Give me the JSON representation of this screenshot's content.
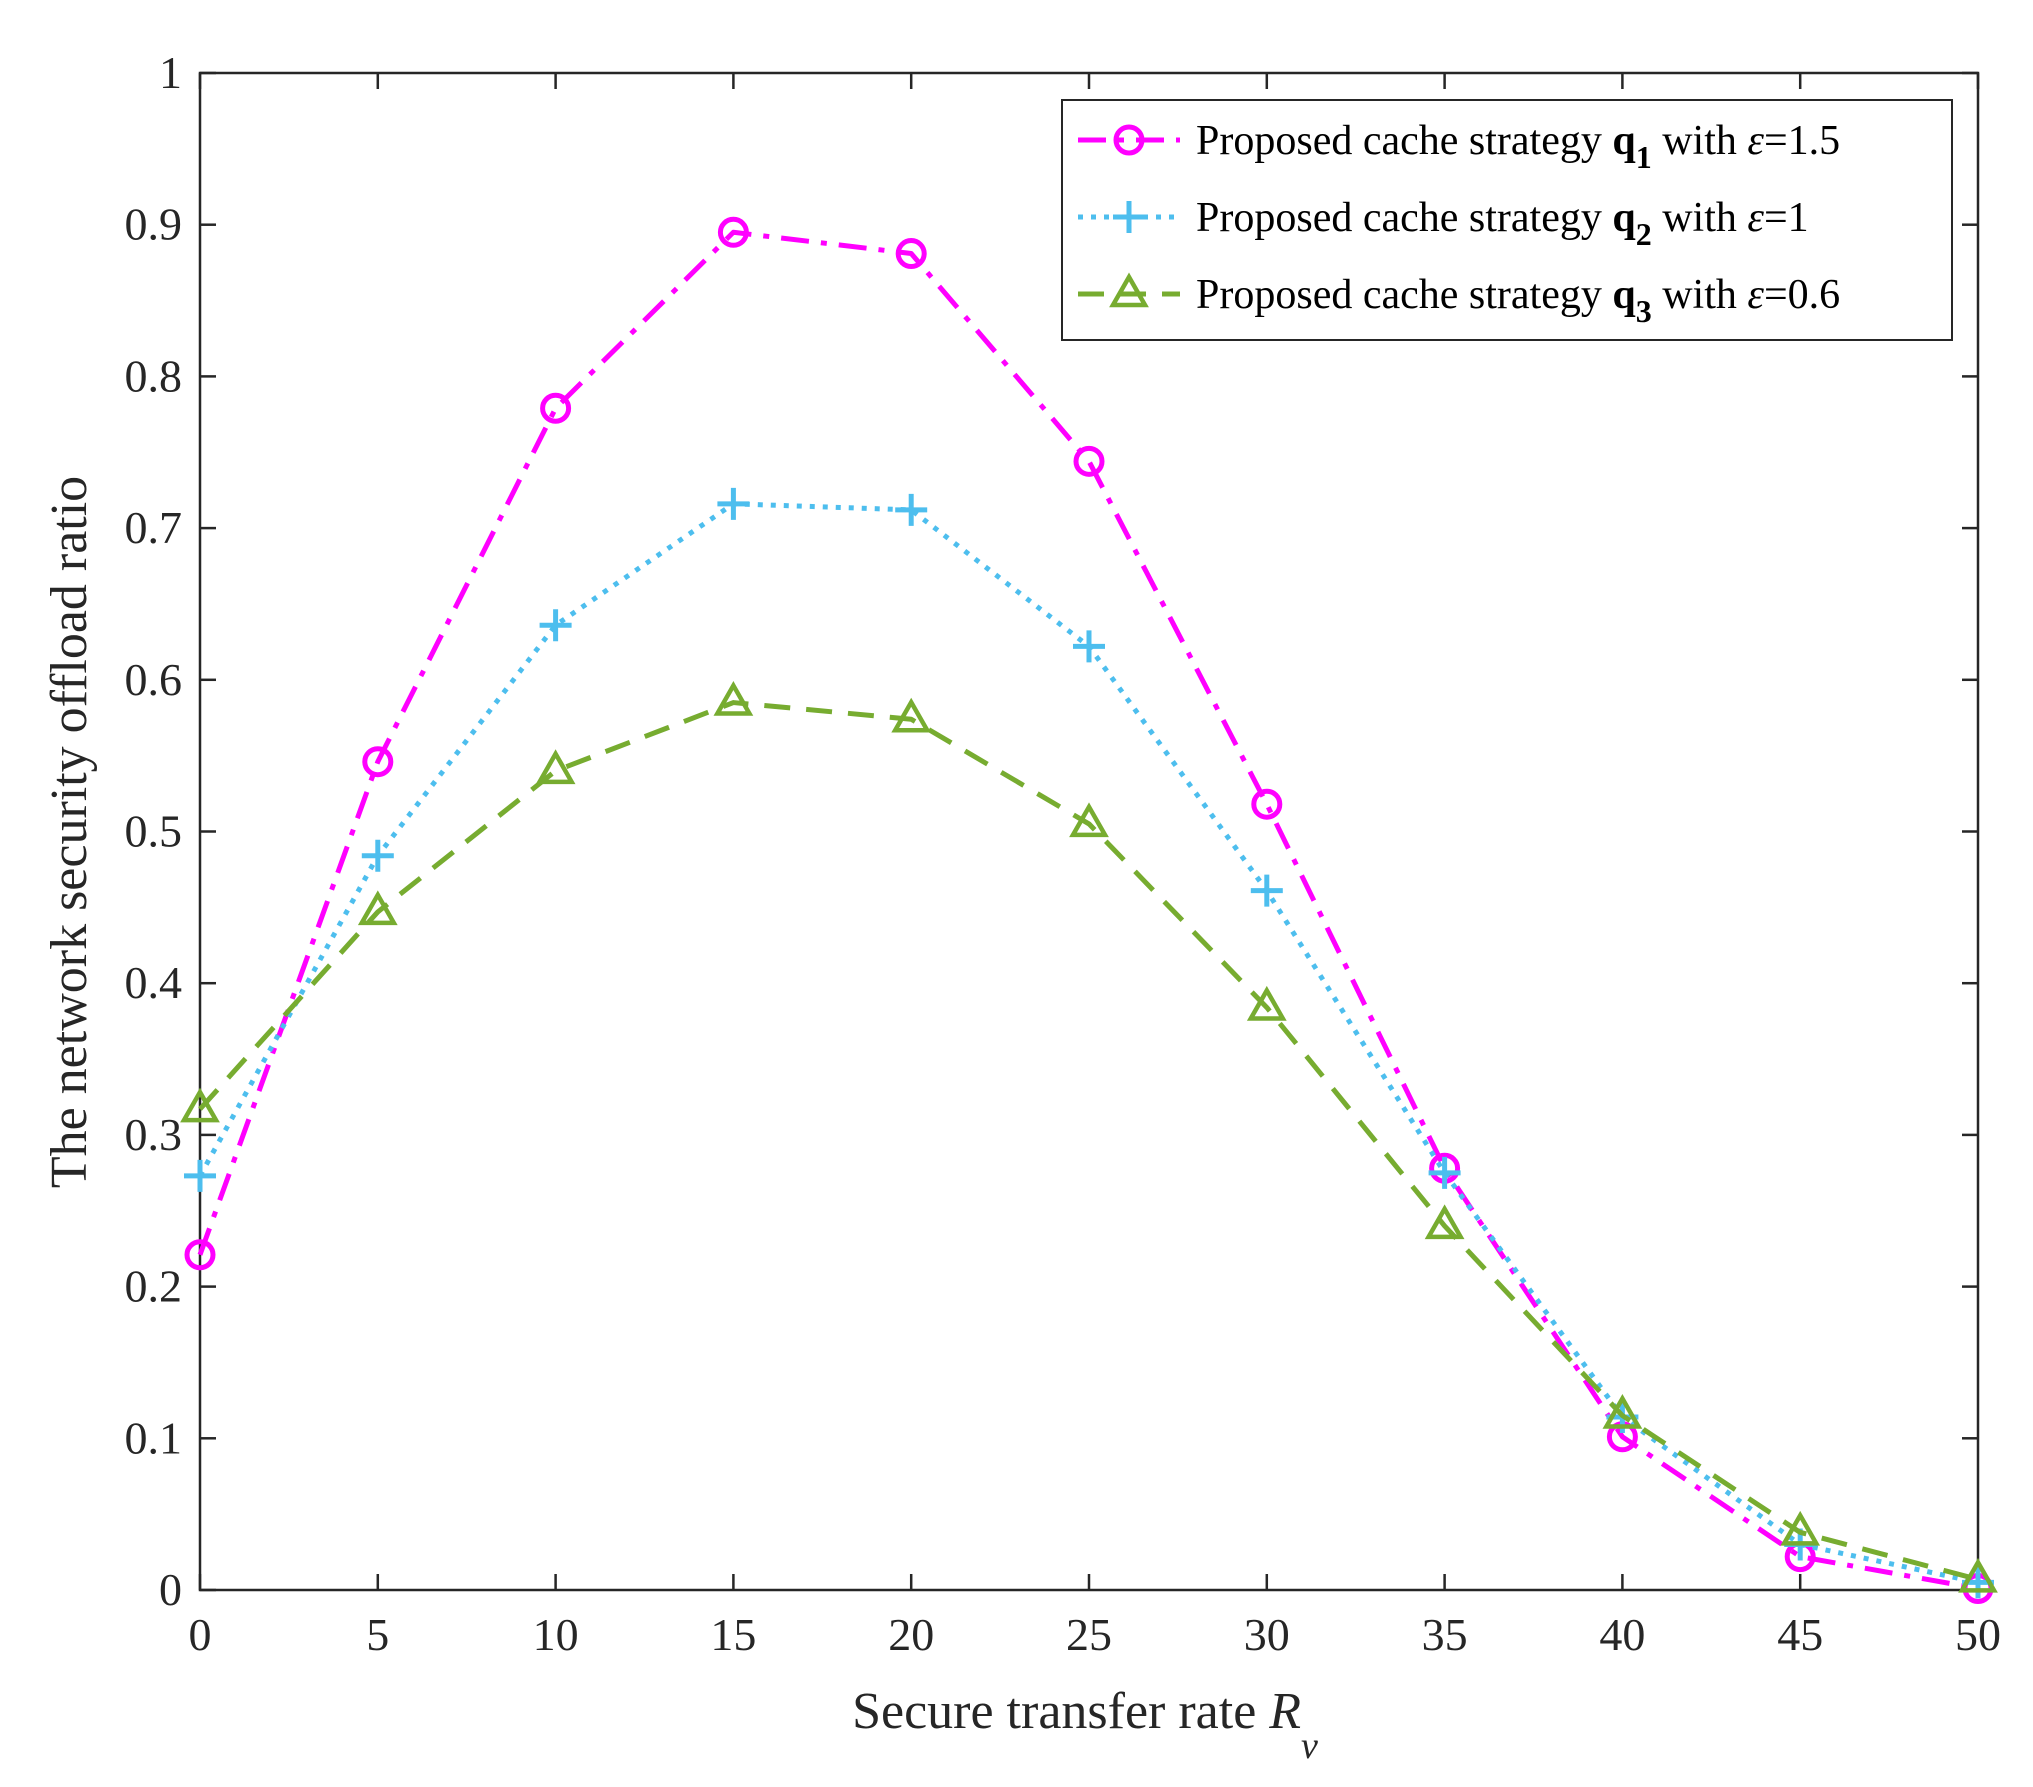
{
  "chart_data": {
    "type": "line",
    "title": "",
    "xlabel": {
      "text": "Secure transfer rate ",
      "var": "R",
      "sub": "v"
    },
    "ylabel": "The network security offload ratio",
    "xlim": [
      0,
      50
    ],
    "ylim": [
      0,
      1
    ],
    "x": [
      0,
      5,
      10,
      15,
      20,
      25,
      30,
      35,
      40,
      45,
      50
    ],
    "xticks": [
      "0",
      "5",
      "10",
      "15",
      "20",
      "25",
      "30",
      "35",
      "40",
      "45",
      "50"
    ],
    "yticks": [
      "0",
      "0.1",
      "0.2",
      "0.3",
      "0.4",
      "0.5",
      "0.6",
      "0.7",
      "0.8",
      "0.9",
      "1"
    ],
    "grid": false,
    "legend_position": "top-right",
    "series": [
      {
        "name": "Proposed cache strategy q1 with ε=1.5",
        "legend": {
          "prefix": "Proposed cache strategy ",
          "bold": "q",
          "sub": "1",
          "middle": " with ",
          "symbol": "ε",
          "suffix": "=1.5"
        },
        "values": [
          0.221,
          0.546,
          0.779,
          0.895,
          0.881,
          0.744,
          0.518,
          0.278,
          0.101,
          0.022,
          0.001
        ],
        "color": "#ff00ff",
        "dash": "dashdot",
        "marker": "circle"
      },
      {
        "name": "Proposed cache strategy q2 with ε=1",
        "legend": {
          "prefix": "Proposed cache strategy ",
          "bold": "q",
          "sub": "2",
          "middle": " with ",
          "symbol": "ε",
          "suffix": "=1"
        },
        "values": [
          0.273,
          0.484,
          0.636,
          0.716,
          0.712,
          0.622,
          0.461,
          0.275,
          0.114,
          0.03,
          0.005
        ],
        "color": "#4dbeee",
        "dash": "dotted",
        "marker": "plus"
      },
      {
        "name": "Proposed cache strategy q3 with ε=0.6",
        "legend": {
          "prefix": "Proposed cache strategy ",
          "bold": "q",
          "sub": "3",
          "middle": " with ",
          "symbol": "ε",
          "suffix": "=0.6"
        },
        "values": [
          0.317,
          0.447,
          0.54,
          0.585,
          0.574,
          0.505,
          0.384,
          0.24,
          0.115,
          0.038,
          0.007
        ],
        "color": "#77ac30",
        "dash": "dashed",
        "marker": "triangle"
      }
    ]
  }
}
